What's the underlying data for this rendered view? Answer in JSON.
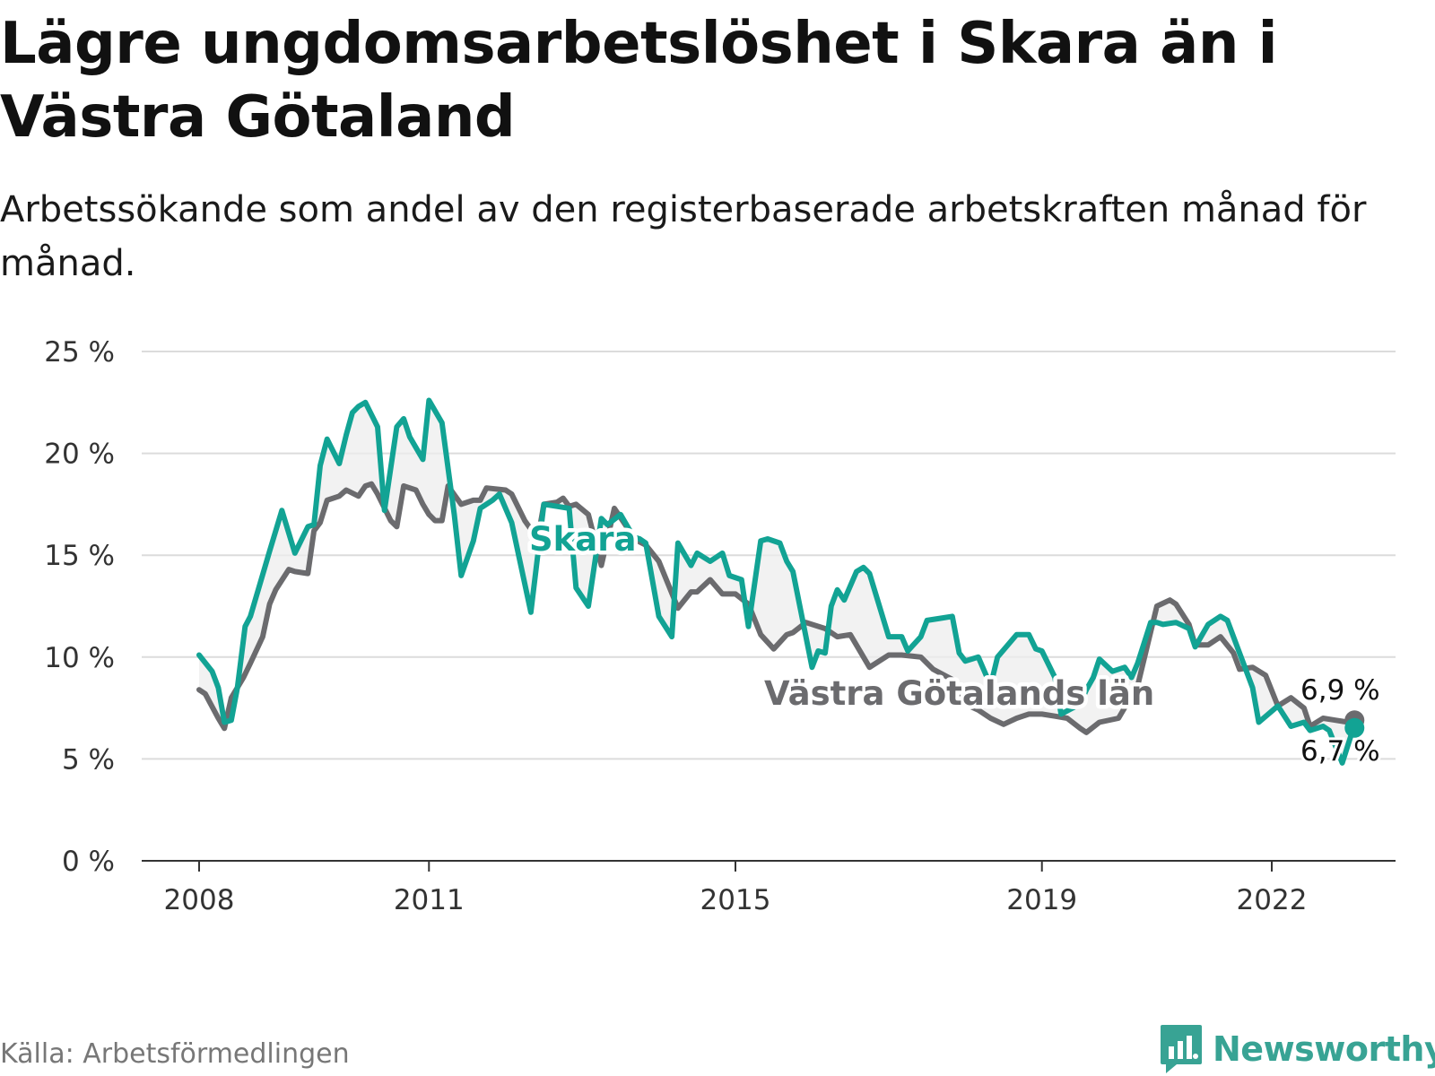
{
  "title": "Lägre ungdomsarbetslöshet i Skara än i Västra Götaland",
  "subtitle": "Arbetssökande som andel av den registerbaserade arbetskraften månad för månad.",
  "source": "Källa: Arbetsförmedlingen",
  "brand": "Newsworthy",
  "colors": {
    "skara": "#12a394",
    "vg": "#6b6b6e",
    "grid": "#dcdcdc",
    "axis": "#333333",
    "fill": "#ededed",
    "brand": "#38a394"
  },
  "chart_data": {
    "type": "line",
    "title": "Lägre ungdomsarbetslöshet i Skara än i Västra Götaland",
    "xlabel": "",
    "ylabel": "",
    "xlim": [
      2007.75,
      2023.5
    ],
    "ylim": [
      0,
      25
    ],
    "grid": true,
    "y_ticks": [
      0,
      5,
      10,
      15,
      20,
      25
    ],
    "y_tick_labels": [
      "0 %",
      "5 %",
      "10 %",
      "15 %",
      "20 %",
      "25 %"
    ],
    "x_ticks": [
      2008,
      2011,
      2015,
      2019,
      2022
    ],
    "x_tick_labels": [
      "2008",
      "2011",
      "2015",
      "2019",
      "2022"
    ],
    "series": [
      {
        "name": "Skara",
        "label": "Skara",
        "end_label": "6,7 %",
        "x": [
          2008.0,
          2008.17,
          2008.25,
          2008.33,
          2008.42,
          2008.5,
          2008.6,
          2008.67,
          2008.92,
          2009.08,
          2009.25,
          2009.42,
          2009.5,
          2009.58,
          2009.67,
          2009.83,
          2009.92,
          2010.0,
          2010.08,
          2010.17,
          2010.33,
          2010.42,
          2010.58,
          2010.67,
          2010.75,
          2010.92,
          2011.0,
          2011.17,
          2011.33,
          2011.42,
          2011.58,
          2011.67,
          2011.83,
          2011.92,
          2012.08,
          2012.33,
          2012.5,
          2012.67,
          2012.83,
          2012.92,
          2013.08,
          2013.25,
          2013.33,
          2013.5,
          2013.67,
          2013.75,
          2013.83,
          2014.0,
          2014.17,
          2014.25,
          2014.42,
          2014.5,
          2014.67,
          2014.83,
          2014.92,
          2015.08,
          2015.17,
          2015.33,
          2015.42,
          2015.58,
          2015.67,
          2015.75,
          2016.0,
          2016.08,
          2016.17,
          2016.25,
          2016.33,
          2016.42,
          2016.58,
          2016.67,
          2016.75,
          2017.0,
          2017.17,
          2017.25,
          2017.42,
          2017.5,
          2017.67,
          2017.83,
          2017.92,
          2018.0,
          2018.17,
          2018.33,
          2018.42,
          2018.67,
          2018.83,
          2018.92,
          2019.0,
          2019.17,
          2019.25,
          2019.5,
          2019.58,
          2019.67,
          2019.75,
          2019.92,
          2020.08,
          2020.17,
          2020.25,
          2020.42,
          2020.5,
          2020.58,
          2020.75,
          2020.92,
          2021.0,
          2021.17,
          2021.33,
          2021.42,
          2021.58,
          2021.75,
          2021.83,
          2022.08,
          2022.25,
          2022.42,
          2022.5,
          2022.67,
          2022.75,
          2022.92,
          2023.08
        ],
        "values": [
          10.1,
          9.3,
          8.5,
          6.8,
          6.9,
          8.5,
          11.5,
          12.0,
          15.2,
          17.2,
          15.1,
          16.4,
          16.5,
          19.4,
          20.7,
          19.5,
          20.9,
          22.0,
          22.3,
          22.5,
          21.3,
          17.2,
          21.3,
          21.7,
          20.8,
          19.7,
          22.6,
          21.5,
          17.0,
          14.0,
          15.7,
          17.3,
          17.7,
          18.0,
          16.6,
          12.2,
          17.5,
          17.4,
          17.3,
          13.4,
          12.5,
          16.8,
          16.5,
          17.0,
          15.9,
          15.8,
          15.6,
          12.0,
          11.0,
          15.6,
          14.5,
          15.1,
          14.7,
          15.1,
          14.0,
          13.8,
          11.5,
          15.7,
          15.8,
          15.6,
          14.7,
          14.2,
          9.5,
          10.3,
          10.2,
          12.5,
          13.3,
          12.8,
          14.2,
          14.4,
          14.1,
          11.0,
          11.0,
          10.3,
          11.0,
          11.8,
          11.9,
          12.0,
          10.2,
          9.8,
          10.0,
          8.6,
          10.0,
          11.1,
          11.1,
          10.4,
          10.3,
          9.0,
          7.2,
          7.7,
          8.4,
          9.0,
          9.9,
          9.3,
          9.5,
          9.0,
          9.7,
          11.7,
          11.7,
          11.6,
          11.7,
          11.4,
          10.5,
          11.6,
          12.0,
          11.8,
          10.2,
          8.5,
          6.8,
          7.6,
          6.6,
          6.8,
          6.4,
          6.6,
          6.4,
          4.8,
          6.7
        ]
      },
      {
        "name": "Västra Götalands län",
        "label": "Västra Götalands län",
        "end_label": "6,9 %",
        "x": [
          2008.0,
          2008.08,
          2008.25,
          2008.33,
          2008.42,
          2008.58,
          2008.67,
          2008.83,
          2008.92,
          2009.0,
          2009.17,
          2009.25,
          2009.42,
          2009.5,
          2009.58,
          2009.67,
          2009.83,
          2009.92,
          2010.08,
          2010.17,
          2010.25,
          2010.33,
          2010.5,
          2010.58,
          2010.67,
          2010.83,
          2010.92,
          2011.0,
          2011.08,
          2011.17,
          2011.25,
          2011.42,
          2011.58,
          2011.67,
          2011.75,
          2012.0,
          2012.08,
          2012.25,
          2012.42,
          2012.5,
          2012.67,
          2012.75,
          2012.83,
          2012.92,
          2013.08,
          2013.25,
          2013.42,
          2013.58,
          2013.67,
          2013.83,
          2014.0,
          2014.25,
          2014.42,
          2014.5,
          2014.67,
          2014.83,
          2015.0,
          2015.17,
          2015.33,
          2015.5,
          2015.67,
          2015.75,
          2015.92,
          2016.17,
          2016.33,
          2016.5,
          2016.75,
          2017.0,
          2017.17,
          2017.42,
          2017.58,
          2017.83,
          2018.0,
          2018.17,
          2018.33,
          2018.5,
          2018.67,
          2018.83,
          2019.0,
          2019.17,
          2019.33,
          2019.5,
          2019.58,
          2019.75,
          2020.0,
          2020.25,
          2020.5,
          2020.67,
          2020.75,
          2020.92,
          2021.0,
          2021.17,
          2021.33,
          2021.5,
          2021.58,
          2021.75,
          2021.92,
          2022.08,
          2022.25,
          2022.42,
          2022.5,
          2022.67,
          2022.83,
          2023.0,
          2023.08
        ],
        "values": [
          8.4,
          8.2,
          7.0,
          6.5,
          8.0,
          9.0,
          9.7,
          11.0,
          12.6,
          13.3,
          14.3,
          14.2,
          14.1,
          16.2,
          16.6,
          17.7,
          17.9,
          18.2,
          17.9,
          18.4,
          18.5,
          18.0,
          16.7,
          16.4,
          18.4,
          18.2,
          17.5,
          17.0,
          16.7,
          16.7,
          18.4,
          17.5,
          17.7,
          17.7,
          18.3,
          18.2,
          18.0,
          16.7,
          15.8,
          17.5,
          17.6,
          17.8,
          17.4,
          17.5,
          17.0,
          14.5,
          17.3,
          16.4,
          15.8,
          15.5,
          14.7,
          12.4,
          13.2,
          13.2,
          13.8,
          13.1,
          13.1,
          12.6,
          11.1,
          10.4,
          11.1,
          11.2,
          11.7,
          11.4,
          11.0,
          11.1,
          9.5,
          10.1,
          10.1,
          10.0,
          9.4,
          8.9,
          7.7,
          7.4,
          7.0,
          6.7,
          7.0,
          7.2,
          7.2,
          7.1,
          7.0,
          6.5,
          6.3,
          6.8,
          7.0,
          8.6,
          12.5,
          12.8,
          12.6,
          11.6,
          10.6,
          10.6,
          11.0,
          10.2,
          9.4,
          9.5,
          9.1,
          7.6,
          8.0,
          7.5,
          6.6,
          7.0,
          6.9,
          6.8,
          6.9
        ]
      }
    ]
  }
}
